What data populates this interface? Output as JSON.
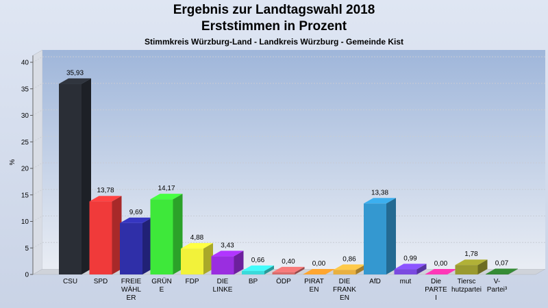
{
  "title": "Ergebnis zur Landtagswahl 2018",
  "subtitle_line2": "Erststimmen in Prozent",
  "subtitle": "Stimmkreis Würzburg-Land - Landkreis Würzburg - Gemeinde Kist",
  "chart_data": {
    "type": "bar",
    "ylabel": "%",
    "ylim": [
      0,
      40
    ],
    "yticks": [
      0,
      5,
      10,
      15,
      20,
      25,
      30,
      35,
      40
    ],
    "grid": true,
    "categories": [
      [
        "CSU"
      ],
      [
        "SPD"
      ],
      [
        "FREIE",
        "WÄHL",
        "ER"
      ],
      [
        "GRÜN",
        "E"
      ],
      [
        "FDP"
      ],
      [
        "DIE",
        "LINKE"
      ],
      [
        "BP"
      ],
      [
        "ÖDP"
      ],
      [
        "PIRAT",
        "EN"
      ],
      [
        "DIE",
        "FRANK",
        "EN"
      ],
      [
        "AfD"
      ],
      [
        "mut"
      ],
      [
        "Die",
        "PARTE",
        "I"
      ],
      [
        "Tiersc",
        "hutzpartei"
      ],
      [
        "V-",
        "Partei³"
      ]
    ],
    "values": [
      35.93,
      13.78,
      9.69,
      14.17,
      4.88,
      3.43,
      0.66,
      0.4,
      0.0,
      0.86,
      13.38,
      0.99,
      0.0,
      1.78,
      0.07
    ],
    "value_labels": [
      "35,93",
      "13,78",
      "9,69",
      "14,17",
      "4,88",
      "3,43",
      "0,66",
      "0,40",
      "0,00",
      "0,86",
      "13,38",
      "0,99",
      "0,00",
      "1,78",
      "0,07"
    ],
    "colors": [
      "#2a2e36",
      "#f03a3a",
      "#2f2fa8",
      "#3ee83a",
      "#f2f23a",
      "#9a2ee0",
      "#3adada",
      "#d86a6a",
      "#f5902a",
      "#e8b040",
      "#3498d0",
      "#7a4ae0",
      "#f030a0",
      "#9a9a30",
      "#2e7a2e"
    ]
  }
}
